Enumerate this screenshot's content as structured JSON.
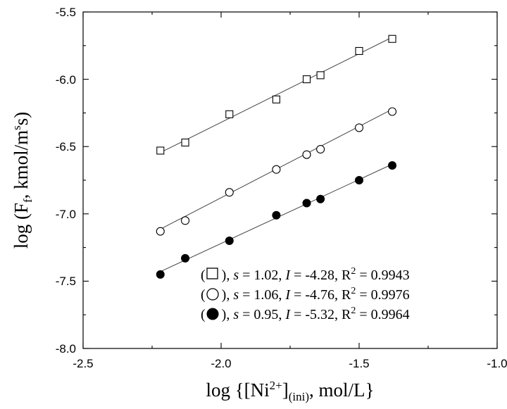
{
  "chart_data": {
    "type": "scatter",
    "title": "",
    "xlabel": "log {[Ni2+](ini), mol/L}",
    "xlabel_parts": {
      "pre": "log {[Ni",
      "sup": "2+",
      "mid": "]",
      "sub": "(ini)",
      "post": ", mol/L}"
    },
    "ylabel": "log (Ff, kmol/mss)",
    "ylabel_parts": {
      "pre": "log (F",
      "sub": "f",
      "mid": ", kmol/m",
      "sup": "s",
      "post": "s)"
    },
    "xlim": [
      -2.5,
      -1.0
    ],
    "ylim": [
      -8.0,
      -5.5
    ],
    "xticks": [
      "-2.5",
      "-2.0",
      "-1.5",
      "-1.0"
    ],
    "yticks": [
      "-5.5",
      "-6.0",
      "-6.5",
      "-7.0",
      "-7.5",
      "-8.0"
    ],
    "grid": false,
    "legend_position": "bottom-right",
    "x": [
      -2.22,
      -2.13,
      -1.97,
      -1.8,
      -1.69,
      -1.64,
      -1.5,
      -1.38
    ],
    "series": [
      {
        "marker": "square-open",
        "values": [
          -6.53,
          -6.47,
          -6.26,
          -6.15,
          -6.0,
          -5.97,
          -5.79,
          -5.7
        ],
        "fit": {
          "slope": 1.02,
          "intercept": -4.28
        }
      },
      {
        "marker": "circle-open",
        "values": [
          -7.13,
          -7.05,
          -6.84,
          -6.67,
          -6.56,
          -6.52,
          -6.36,
          -6.24
        ],
        "fit": {
          "slope": 1.06,
          "intercept": -4.76
        }
      },
      {
        "marker": "circle-filled",
        "values": [
          -7.45,
          -7.33,
          -7.2,
          -7.01,
          -6.92,
          -6.89,
          -6.75,
          -6.64
        ],
        "fit": {
          "slope": 0.95,
          "intercept": -5.32
        }
      }
    ],
    "legend": [
      {
        "open": "(",
        "close": "), ",
        "s_label": "s",
        "s_text": " = 1.02, ",
        "i_label": "I",
        "i_text": " = -4.28, R",
        "r_sup": "2",
        "r_text": " = 0.9943"
      },
      {
        "open": "(",
        "close": "), ",
        "s_label": "s",
        "s_text": " = 1.06, ",
        "i_label": "I",
        "i_text": " = -4.76, R",
        "r_sup": "2",
        "r_text": " = 0.9976"
      },
      {
        "open": "(",
        "close": "), ",
        "s_label": "s",
        "s_text": " = 0.95, ",
        "i_label": "I",
        "i_text": " = -5.32, R",
        "r_sup": "2",
        "r_text": " = 0.9964"
      }
    ]
  }
}
